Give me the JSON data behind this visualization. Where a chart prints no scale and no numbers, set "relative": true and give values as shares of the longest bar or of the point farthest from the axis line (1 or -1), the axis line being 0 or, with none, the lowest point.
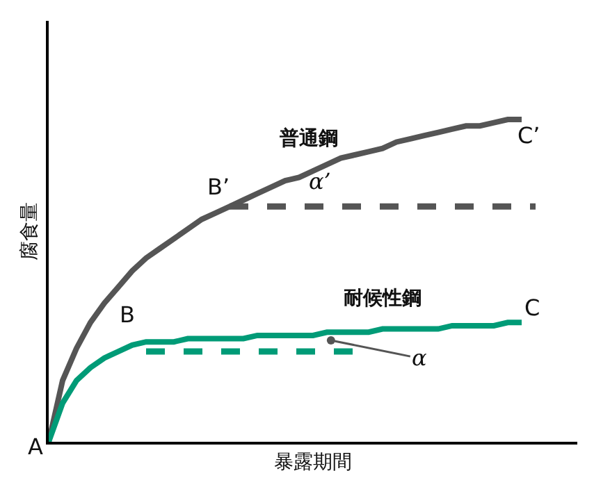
{
  "chart_data": {
    "type": "line",
    "relative": true,
    "xlabel": "暴露期間",
    "ylabel": "腐食量",
    "legend": false,
    "marker": "none",
    "categories": [
      null,
      null,
      null,
      null,
      null,
      null,
      null,
      null,
      null,
      null,
      null,
      null,
      null,
      null,
      null,
      null,
      null,
      null,
      null,
      null,
      null,
      null,
      null,
      null,
      null,
      null,
      null,
      null,
      null,
      null,
      null,
      null,
      null,
      null,
      null,
      null,
      null
    ],
    "series": [
      {
        "name": "普通鋼",
        "color": "#555555",
        "line_style": "solid",
        "values": [
          0,
          0.19,
          0.29,
          0.37,
          0.43,
          0.48,
          0.53,
          0.57,
          0.6,
          0.63,
          0.66,
          0.69,
          0.71,
          0.73,
          0.75,
          0.77,
          0.79,
          0.81,
          0.82,
          0.84,
          0.86,
          0.88,
          0.89,
          0.9,
          0.91,
          0.93,
          0.94,
          0.95,
          0.96,
          0.97,
          0.98,
          0.98,
          0.99,
          1,
          1,
          null,
          null
        ]
      },
      {
        "color": "#555555",
        "line_style": "dashed",
        "values": [
          null,
          null,
          null,
          null,
          null,
          null,
          null,
          null,
          null,
          null,
          null,
          null,
          null,
          0.73,
          0.73,
          0.73,
          0.73,
          0.73,
          0.73,
          0.73,
          0.73,
          0.73,
          0.73,
          0.73,
          0.73,
          0.73,
          0.73,
          0.73,
          0.73,
          0.73,
          0.73,
          0.73,
          0.73,
          0.73,
          0.73,
          0.73,
          null
        ]
      },
      {
        "name": "耐候性鋼",
        "color": "#009b77",
        "line_style": "solid",
        "values": [
          0,
          0.12,
          0.19,
          0.23,
          0.26,
          0.28,
          0.3,
          0.31,
          0.31,
          0.31,
          0.32,
          0.32,
          0.32,
          0.32,
          0.32,
          0.33,
          0.33,
          0.33,
          0.33,
          0.33,
          0.34,
          0.34,
          0.34,
          0.34,
          0.35,
          0.35,
          0.35,
          0.35,
          0.35,
          0.36,
          0.36,
          0.36,
          0.36,
          0.37,
          0.37,
          null,
          null
        ]
      },
      {
        "color": "#009b77",
        "line_style": "dashed",
        "values": [
          null,
          null,
          null,
          null,
          null,
          null,
          null,
          0.28,
          0.28,
          0.28,
          0.28,
          0.28,
          0.28,
          0.28,
          0.28,
          0.28,
          0.28,
          0.28,
          0.28,
          0.28,
          0.28,
          0.28,
          0.28,
          null,
          null,
          null,
          null,
          null,
          null,
          null,
          null,
          null,
          null,
          null,
          null,
          null,
          null
        ]
      }
    ],
    "annotations": [
      "A",
      "B",
      "B’",
      "C",
      "C’",
      "α",
      "α’"
    ]
  }
}
